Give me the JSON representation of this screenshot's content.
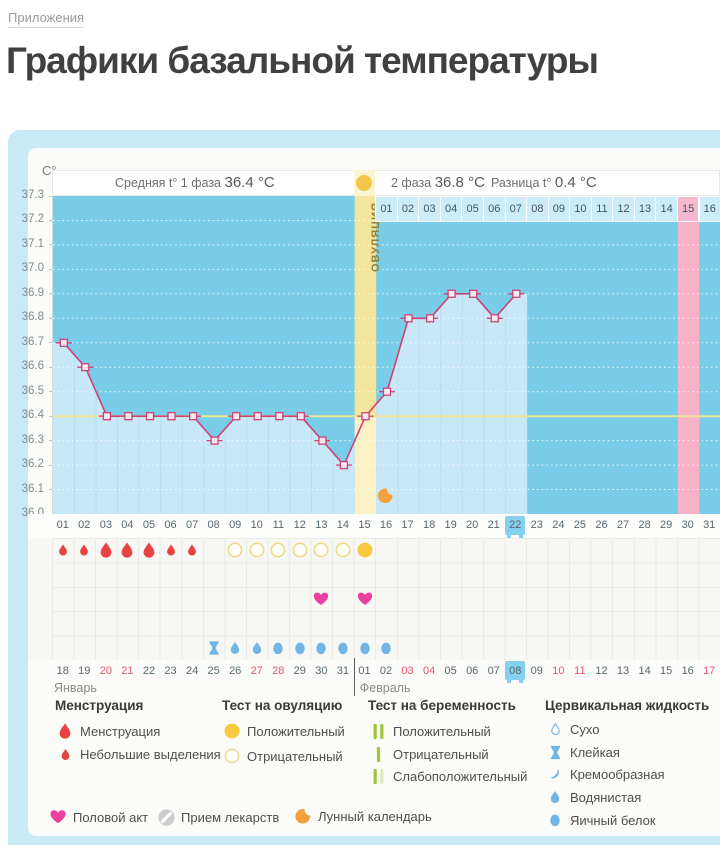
{
  "page": {
    "breadcrumb": "Приложения",
    "title": "Графики базальной температуры"
  },
  "chart_header": {
    "unit": "C°",
    "avg_phase1_label": "Средняя t° 1 фаза",
    "avg_phase1_value": "36.4 °C",
    "phase2_label": "2 фаза",
    "phase2_value": "36.8 °C",
    "diff_label": "Разница t°",
    "diff_value": "0.4 °C",
    "ovulation_label": "ОВУЛЯЦИЯ"
  },
  "chart_data": {
    "type": "line",
    "ylabel": "C°",
    "ylim": [
      36.0,
      37.3
    ],
    "ytick_step": 0.1,
    "grid": "dotted-white",
    "cycle_days_total": 31,
    "measured_days": [
      1,
      2,
      3,
      4,
      5,
      6,
      7,
      8,
      9,
      10,
      11,
      12,
      13,
      14,
      15,
      16,
      17,
      18,
      19,
      20,
      21,
      22
    ],
    "values": [
      36.7,
      36.6,
      36.4,
      36.4,
      36.4,
      36.4,
      36.4,
      36.3,
      36.4,
      36.4,
      36.4,
      36.4,
      36.3,
      36.2,
      36.4,
      36.5,
      36.8,
      36.8,
      36.9,
      36.9,
      36.8,
      36.9
    ],
    "average_phase1_line": 36.4,
    "ovulation_day": 15,
    "expected_period_day": 30,
    "today_cycle_day": 22,
    "phase2_start_day": 16,
    "phase2_labels": [
      "01",
      "02",
      "03",
      "04",
      "05",
      "06",
      "07",
      "08",
      "09",
      "10",
      "11",
      "12",
      "13",
      "14",
      "15",
      "16"
    ],
    "moon_calendar_day": 16
  },
  "symptom_grid": {
    "rows": 5,
    "menstruation": [
      {
        "day": 1,
        "size": "small"
      },
      {
        "day": 2,
        "size": "small"
      },
      {
        "day": 3,
        "size": "large"
      },
      {
        "day": 4,
        "size": "large"
      },
      {
        "day": 5,
        "size": "large"
      },
      {
        "day": 6,
        "size": "small"
      },
      {
        "day": 7,
        "size": "small"
      }
    ],
    "ovulation_tests": [
      {
        "day": 9,
        "result": "negative"
      },
      {
        "day": 10,
        "result": "negative"
      },
      {
        "day": 11,
        "result": "negative"
      },
      {
        "day": 12,
        "result": "negative"
      },
      {
        "day": 13,
        "result": "negative"
      },
      {
        "day": 14,
        "result": "negative"
      },
      {
        "day": 15,
        "result": "positive"
      }
    ],
    "intercourse_days": [
      13,
      15
    ],
    "cervical_fluid": [
      {
        "day": 8,
        "type": "sticky"
      },
      {
        "day": 9,
        "type": "watery"
      },
      {
        "day": 10,
        "type": "watery"
      },
      {
        "day": 11,
        "type": "eggwhite"
      },
      {
        "day": 12,
        "type": "eggwhite"
      },
      {
        "day": 13,
        "type": "eggwhite"
      },
      {
        "day": 14,
        "type": "eggwhite"
      },
      {
        "day": 15,
        "type": "eggwhite"
      },
      {
        "day": 16,
        "type": "eggwhite"
      }
    ]
  },
  "date_axis": {
    "months": [
      {
        "name": "Январь",
        "start_date": 18,
        "end_date": 31,
        "red_dates": [
          20,
          21,
          27,
          28
        ]
      },
      {
        "name": "Февраль",
        "start_date": 1,
        "end_date": 17,
        "red_dates": [
          3,
          4,
          10,
          11,
          17
        ]
      }
    ],
    "today_month_index": 1,
    "today_date": 8
  },
  "legend": {
    "sections": [
      {
        "title": "Менструация",
        "items": [
          {
            "icon": "drop-large",
            "label": "Менструация"
          },
          {
            "icon": "drop-small",
            "label": "Небольшие выделения"
          }
        ]
      },
      {
        "title": "Тест на овуляцию",
        "items": [
          {
            "icon": "test-positive",
            "label": "Положительный"
          },
          {
            "icon": "test-negative",
            "label": "Отрицательный"
          }
        ]
      },
      {
        "title": "Тест на беременность",
        "items": [
          {
            "icon": "preg-positive",
            "label": "Положительный"
          },
          {
            "icon": "preg-negative",
            "label": "Отрицательный"
          },
          {
            "icon": "preg-weak",
            "label": "Слабоположительный"
          }
        ]
      },
      {
        "title": "Цервикальная жидкость",
        "items": [
          {
            "icon": "cf-dry",
            "label": "Сухо"
          },
          {
            "icon": "cf-sticky",
            "label": "Клейкая"
          },
          {
            "icon": "cf-creamy",
            "label": "Кремообразная"
          },
          {
            "icon": "cf-watery",
            "label": "Водянистая"
          },
          {
            "icon": "cf-eggwhite",
            "label": "Яичный белок"
          }
        ]
      }
    ],
    "footer_items": [
      {
        "icon": "heart",
        "label": "Половой акт"
      },
      {
        "icon": "pill",
        "label": "Прием лекарств"
      },
      {
        "icon": "moon",
        "label": "Лунный календарь"
      }
    ]
  },
  "colors": {
    "panel_blue": "#c9e9f7",
    "chart_bg": "#79cde9",
    "area_fill": "#c9e8f7",
    "line": "#cb4474",
    "avg_line": "#ece490",
    "ovulation_column": "#f3e69c",
    "ovulation_column_light": "#faf2c6",
    "expected_period_pink": "#f8b3c8",
    "today_highlight": "#86d0ef",
    "menstruation_red": "#e74343",
    "ovulation_yellow": "#f6c93e",
    "ovulation_yellow_outline": "#eeda8c",
    "pregnancy_green": "#9fc43e",
    "pregnancy_pale": "#dcebbd",
    "cervical_blue": "#6fb5e6",
    "heart_pink": "#ed3f9f",
    "moon_orange": "#f2a040",
    "weekend_red": "#e4566e"
  }
}
